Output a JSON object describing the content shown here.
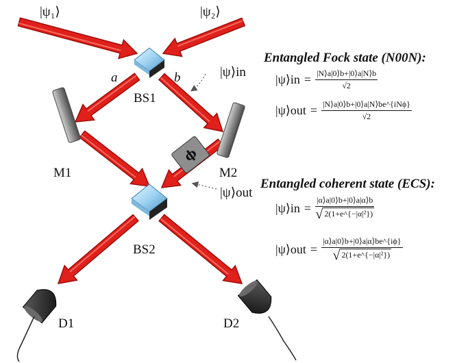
{
  "inputs": {
    "psi1": "|ψ₁⟩",
    "psi2": "|ψ₂⟩"
  },
  "components": {
    "bs1": "BS1",
    "bs2": "BS2",
    "m1": "M1",
    "m2": "M2",
    "phase": "ϕ",
    "d1": "D1",
    "d2": "D2",
    "arm_a": "a",
    "arm_b": "b"
  },
  "state_labels": {
    "psi_in": "|ψ⟩in",
    "psi_out": "|ψ⟩out"
  },
  "noon": {
    "heading": "Entangled Fock state (N00N):",
    "in_lhs": "|ψ⟩in",
    "in_num": "|N⟩a|0⟩b+|0⟩a|N⟩b",
    "in_den": "√2",
    "out_lhs": "|ψ⟩out",
    "out_num": "|N⟩a|0⟩b+|0⟩a|N⟩be^{iNϕ}",
    "out_den": "√2"
  },
  "ecs": {
    "heading": "Entangled coherent state (ECS):",
    "in_lhs": "|ψ⟩in",
    "in_num": "|α⟩a|0⟩b+|0⟩a|α⟩b",
    "in_den": "2(1+e^{−|α|²})",
    "out_lhs": "|ψ⟩out",
    "out_num": "|α⟩a|0⟩b+|0⟩a|α⟩be^{iϕ}",
    "out_den": "2(1+e^{−|α|²})"
  },
  "colors": {
    "beam": "#e0201b",
    "beam_dark": "#9c0d0a",
    "splitter": "#9fd3f2",
    "mirror": "#8a8a8a",
    "detector": "#2a2a2a"
  }
}
